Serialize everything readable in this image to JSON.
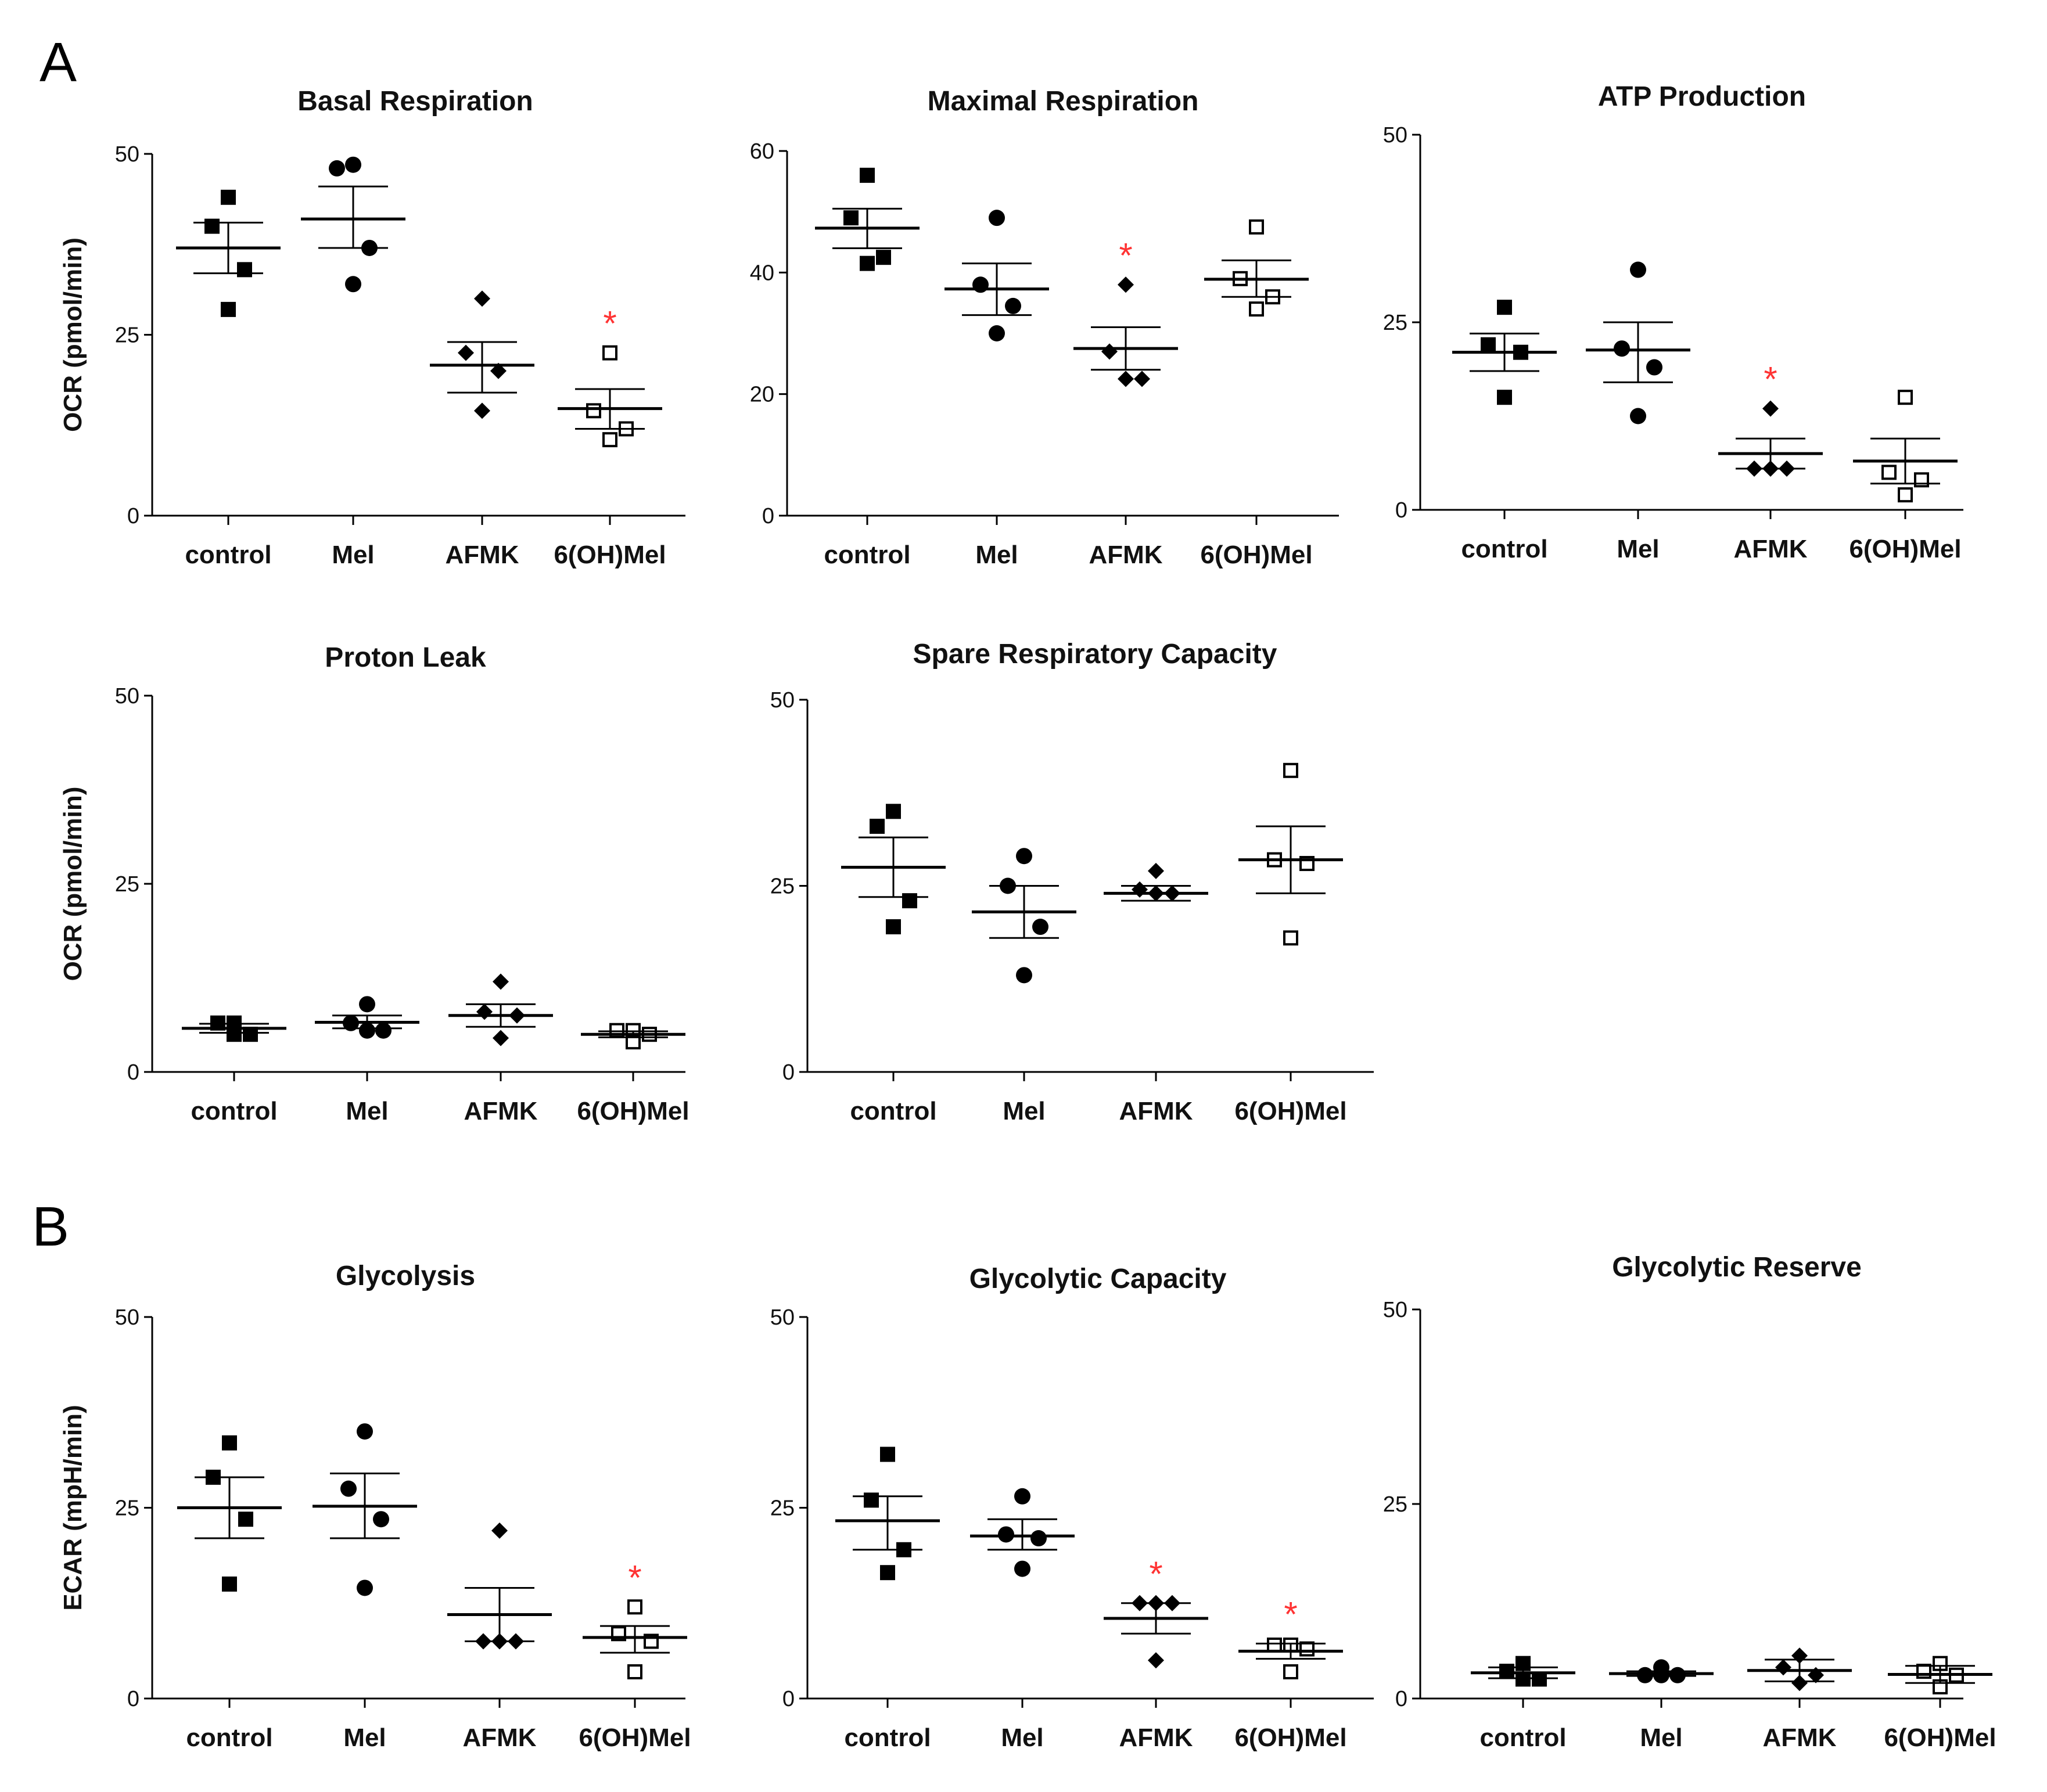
{
  "figure": {
    "panel_labels": [
      "A",
      "B"
    ],
    "colors": {
      "ink": "#000000",
      "significance": "#ff3333"
    },
    "marker_legend": {
      "control": "filled-square",
      "Mel": "filled-circle",
      "AFMK": "filled-diamond",
      "6(OH)Mel": "open-square"
    }
  },
  "chart_data": [
    {
      "id": "basal",
      "panel": "A",
      "type": "scatter",
      "title": "Basal Respiration",
      "ylabel": "OCR (pmol/min)",
      "ylim": [
        0,
        50
      ],
      "yticks": [
        0,
        25,
        50
      ],
      "categories": [
        "control",
        "Mel",
        "AFMK",
        "6(OH)Mel"
      ],
      "series": [
        {
          "name": "control",
          "marker": "square-filled",
          "points": [
            44,
            40,
            34,
            28.5
          ],
          "mean": 37,
          "sem_low": 33.5,
          "sem_high": 40.5,
          "significant": false
        },
        {
          "name": "Mel",
          "marker": "circle-filled",
          "points": [
            48.5,
            48,
            37,
            32
          ],
          "mean": 41,
          "sem_low": 37,
          "sem_high": 45.5,
          "significant": false
        },
        {
          "name": "AFMK",
          "marker": "diamond-filled",
          "points": [
            30,
            22.5,
            20,
            14.5
          ],
          "mean": 20.8,
          "sem_low": 17,
          "sem_high": 24,
          "significant": false
        },
        {
          "name": "6(OH)Mel",
          "marker": "square-open",
          "points": [
            22.5,
            14.5,
            12,
            10.5
          ],
          "mean": 14.8,
          "sem_low": 12,
          "sem_high": 17.5,
          "significant": true
        }
      ]
    },
    {
      "id": "maximal",
      "panel": "A",
      "type": "scatter",
      "title": "Maximal Respiration",
      "ylabel": "",
      "ylim": [
        0,
        60
      ],
      "yticks": [
        0,
        20,
        40,
        60
      ],
      "categories": [
        "control",
        "Mel",
        "AFMK",
        "6(OH)Mel"
      ],
      "series": [
        {
          "name": "control",
          "marker": "square-filled",
          "points": [
            56,
            49,
            42.5,
            41.5
          ],
          "mean": 47.3,
          "sem_low": 44,
          "sem_high": 50.5,
          "significant": false
        },
        {
          "name": "Mel",
          "marker": "circle-filled",
          "points": [
            49,
            38,
            34.5,
            30
          ],
          "mean": 37.3,
          "sem_low": 33,
          "sem_high": 41.5,
          "significant": false
        },
        {
          "name": "AFMK",
          "marker": "diamond-filled",
          "points": [
            38,
            27,
            22.5,
            22.5
          ],
          "mean": 27.5,
          "sem_low": 24,
          "sem_high": 31,
          "significant": true
        },
        {
          "name": "6(OH)Mel",
          "marker": "square-open",
          "points": [
            47.5,
            39,
            36,
            34
          ],
          "mean": 38.9,
          "sem_low": 36,
          "sem_high": 42,
          "significant": false
        }
      ]
    },
    {
      "id": "atp",
      "panel": "A",
      "type": "scatter",
      "title": "ATP Production",
      "ylabel": "",
      "ylim": [
        0,
        50
      ],
      "yticks": [
        0,
        25,
        50
      ],
      "categories": [
        "control",
        "Mel",
        "AFMK",
        "6(OH)Mel"
      ],
      "series": [
        {
          "name": "control",
          "marker": "square-filled",
          "points": [
            27,
            22,
            21,
            15
          ],
          "mean": 21,
          "sem_low": 18.5,
          "sem_high": 23.5,
          "significant": false
        },
        {
          "name": "Mel",
          "marker": "circle-filled",
          "points": [
            32,
            21.5,
            19,
            12.5
          ],
          "mean": 21.3,
          "sem_low": 17,
          "sem_high": 25,
          "significant": false
        },
        {
          "name": "AFMK",
          "marker": "diamond-filled",
          "points": [
            13.5,
            5.5,
            5.5,
            5.5
          ],
          "mean": 7.5,
          "sem_low": 5.5,
          "sem_high": 9.5,
          "significant": true
        },
        {
          "name": "6(OH)Mel",
          "marker": "square-open",
          "points": [
            15,
            5,
            4,
            2
          ],
          "mean": 6.5,
          "sem_low": 3.5,
          "sem_high": 9.5,
          "significant": false
        }
      ]
    },
    {
      "id": "leak",
      "panel": "A",
      "type": "scatter",
      "title": "Proton Leak",
      "ylabel": "OCR (pmol/min)",
      "ylim": [
        0,
        50
      ],
      "yticks": [
        0,
        25,
        50
      ],
      "categories": [
        "control",
        "Mel",
        "AFMK",
        "6(OH)Mel"
      ],
      "series": [
        {
          "name": "control",
          "marker": "square-filled",
          "points": [
            6.5,
            6.5,
            5,
            5
          ],
          "mean": 5.8,
          "sem_low": 5.2,
          "sem_high": 6.4,
          "significant": false
        },
        {
          "name": "Mel",
          "marker": "circle-filled",
          "points": [
            9,
            6.5,
            5.5,
            5.5
          ],
          "mean": 6.6,
          "sem_low": 5.8,
          "sem_high": 7.5,
          "significant": false
        },
        {
          "name": "AFMK",
          "marker": "diamond-filled",
          "points": [
            12,
            8,
            7.5,
            4.5
          ],
          "mean": 7.5,
          "sem_low": 6,
          "sem_high": 9,
          "significant": false
        },
        {
          "name": "6(OH)Mel",
          "marker": "square-open",
          "points": [
            5.5,
            5.5,
            5,
            4
          ],
          "mean": 5,
          "sem_low": 4.6,
          "sem_high": 5.4,
          "significant": false
        }
      ]
    },
    {
      "id": "spare",
      "panel": "A",
      "type": "scatter",
      "title": "Spare Respiratory Capacity",
      "ylabel": "",
      "ylim": [
        0,
        50
      ],
      "yticks": [
        0,
        25,
        50
      ],
      "categories": [
        "control",
        "Mel",
        "AFMK",
        "6(OH)Mel"
      ],
      "series": [
        {
          "name": "control",
          "marker": "square-filled",
          "points": [
            35,
            33,
            23,
            19.5
          ],
          "mean": 27.5,
          "sem_low": 23.5,
          "sem_high": 31.5,
          "significant": false
        },
        {
          "name": "Mel",
          "marker": "circle-filled",
          "points": [
            29,
            25,
            19.5,
            13
          ],
          "mean": 21.5,
          "sem_low": 18,
          "sem_high": 25,
          "significant": false
        },
        {
          "name": "AFMK",
          "marker": "diamond-filled",
          "points": [
            27,
            24.5,
            24,
            24
          ],
          "mean": 24,
          "sem_low": 23,
          "sem_high": 25,
          "significant": false
        },
        {
          "name": "6(OH)Mel",
          "marker": "square-open",
          "points": [
            40.5,
            28.5,
            28,
            18
          ],
          "mean": 28.5,
          "sem_low": 24,
          "sem_high": 33,
          "significant": false
        }
      ]
    },
    {
      "id": "glycolysis",
      "panel": "B",
      "type": "scatter",
      "title": "Glycolysis",
      "ylabel": "ECAR (mpH/min)",
      "ylim": [
        0,
        50
      ],
      "yticks": [
        0,
        25,
        50
      ],
      "categories": [
        "control",
        "Mel",
        "AFMK",
        "6(OH)Mel"
      ],
      "series": [
        {
          "name": "control",
          "marker": "square-filled",
          "points": [
            33.5,
            29,
            23.5,
            15
          ],
          "mean": 25,
          "sem_low": 21,
          "sem_high": 29,
          "significant": false
        },
        {
          "name": "Mel",
          "marker": "circle-filled",
          "points": [
            35,
            27.5,
            23.5,
            14.5
          ],
          "mean": 25.2,
          "sem_low": 21,
          "sem_high": 29.5,
          "significant": false
        },
        {
          "name": "AFMK",
          "marker": "diamond-filled",
          "points": [
            22,
            7.5,
            7.5,
            7.5
          ],
          "mean": 11,
          "sem_low": 7.5,
          "sem_high": 14.5,
          "significant": false
        },
        {
          "name": "6(OH)Mel",
          "marker": "square-open",
          "points": [
            12,
            8.5,
            7.5,
            3.5
          ],
          "mean": 8,
          "sem_low": 6,
          "sem_high": 9.5,
          "significant": true
        }
      ]
    },
    {
      "id": "capacity",
      "panel": "B",
      "type": "scatter",
      "title": "Glycolytic Capacity",
      "ylabel": "",
      "ylim": [
        0,
        50
      ],
      "yticks": [
        0,
        25,
        50
      ],
      "categories": [
        "control",
        "Mel",
        "AFMK",
        "6(OH)Mel"
      ],
      "series": [
        {
          "name": "control",
          "marker": "square-filled",
          "points": [
            32,
            26,
            19.5,
            16.5
          ],
          "mean": 23.3,
          "sem_low": 19.5,
          "sem_high": 26.5,
          "significant": false
        },
        {
          "name": "Mel",
          "marker": "circle-filled",
          "points": [
            26.5,
            21.5,
            21,
            17
          ],
          "mean": 21.3,
          "sem_low": 19.5,
          "sem_high": 23.5,
          "significant": false
        },
        {
          "name": "AFMK",
          "marker": "diamond-filled",
          "points": [
            12.5,
            12.5,
            12.5,
            5
          ],
          "mean": 10.5,
          "sem_low": 8.5,
          "sem_high": 12.5,
          "significant": true
        },
        {
          "name": "6(OH)Mel",
          "marker": "square-open",
          "points": [
            7,
            7,
            6.5,
            3.5
          ],
          "mean": 6.2,
          "sem_low": 5.2,
          "sem_high": 7.2,
          "significant": true
        }
      ]
    },
    {
      "id": "reserve",
      "panel": "B",
      "type": "scatter",
      "title": "Glycolytic Reserve",
      "ylabel": "",
      "ylim": [
        0,
        50
      ],
      "yticks": [
        0,
        25,
        50
      ],
      "categories": [
        "control",
        "Mel",
        "AFMK",
        "6(OH)Mel"
      ],
      "series": [
        {
          "name": "control",
          "marker": "square-filled",
          "points": [
            4.5,
            3.5,
            2.5,
            2.5
          ],
          "mean": 3.3,
          "sem_low": 2.6,
          "sem_high": 4,
          "significant": false
        },
        {
          "name": "Mel",
          "marker": "circle-filled",
          "points": [
            4,
            3,
            3,
            3
          ],
          "mean": 3.2,
          "sem_low": 2.9,
          "sem_high": 3.5,
          "significant": false
        },
        {
          "name": "AFMK",
          "marker": "diamond-filled",
          "points": [
            5.5,
            4,
            3,
            2
          ],
          "mean": 3.6,
          "sem_low": 2.2,
          "sem_high": 5,
          "significant": false
        },
        {
          "name": "6(OH)Mel",
          "marker": "square-open",
          "points": [
            4.5,
            3.5,
            3,
            1.5
          ],
          "mean": 3.1,
          "sem_low": 2,
          "sem_high": 4.2,
          "significant": false
        }
      ]
    }
  ]
}
